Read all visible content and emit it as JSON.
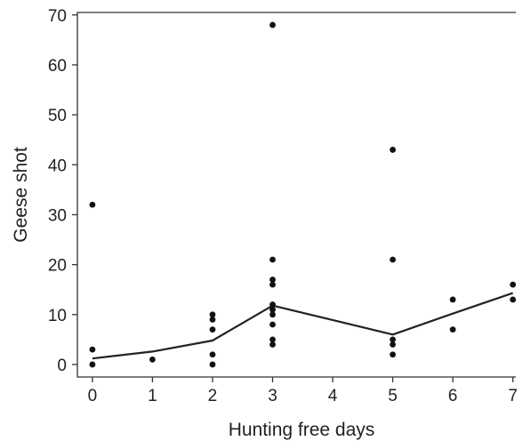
{
  "chart_data": {
    "type": "scatter",
    "title": "",
    "xlabel": "Hunting free days",
    "ylabel": "Geese shot",
    "xlim": [
      -0.25,
      7.05
    ],
    "ylim": [
      -2.5,
      70.5
    ],
    "x_ticks": [
      0,
      1,
      2,
      3,
      4,
      5,
      6,
      7
    ],
    "y_ticks": [
      0,
      10,
      20,
      30,
      40,
      50,
      60,
      70
    ],
    "x_tick_labels": [
      "0",
      "1",
      "2",
      "3",
      "4",
      "5",
      "6",
      "7"
    ],
    "y_tick_labels": [
      "0",
      "10",
      "20",
      "30",
      "40",
      "50",
      "60",
      "70"
    ],
    "grid": false,
    "legend": "none",
    "colors": {
      "points": "#111111",
      "line": "#222222",
      "axis": "#333333"
    },
    "series": [
      {
        "type": "scatter",
        "points": [
          {
            "x": 0,
            "y": 32
          },
          {
            "x": 0,
            "y": 3
          },
          {
            "x": 0,
            "y": 0
          },
          {
            "x": 1,
            "y": 1
          },
          {
            "x": 2,
            "y": 10
          },
          {
            "x": 2,
            "y": 9
          },
          {
            "x": 2,
            "y": 7
          },
          {
            "x": 2,
            "y": 2
          },
          {
            "x": 2,
            "y": 0
          },
          {
            "x": 3,
            "y": 68
          },
          {
            "x": 3,
            "y": 21
          },
          {
            "x": 3,
            "y": 17
          },
          {
            "x": 3,
            "y": 16
          },
          {
            "x": 3,
            "y": 12
          },
          {
            "x": 3,
            "y": 11
          },
          {
            "x": 3,
            "y": 10
          },
          {
            "x": 3,
            "y": 8
          },
          {
            "x": 3,
            "y": 5
          },
          {
            "x": 3,
            "y": 4
          },
          {
            "x": 5,
            "y": 43
          },
          {
            "x": 5,
            "y": 21
          },
          {
            "x": 5,
            "y": 5
          },
          {
            "x": 5,
            "y": 4
          },
          {
            "x": 5,
            "y": 2
          },
          {
            "x": 6,
            "y": 13
          },
          {
            "x": 6,
            "y": 7
          },
          {
            "x": 7,
            "y": 16
          },
          {
            "x": 7,
            "y": 13
          }
        ]
      },
      {
        "type": "line",
        "points": [
          {
            "x": 0,
            "y": 1.2
          },
          {
            "x": 1,
            "y": 2.6
          },
          {
            "x": 2,
            "y": 4.8
          },
          {
            "x": 3,
            "y": 11.8
          },
          {
            "x": 5,
            "y": 6.0
          },
          {
            "x": 6,
            "y": 10.2
          },
          {
            "x": 7,
            "y": 14.3
          }
        ]
      }
    ]
  }
}
